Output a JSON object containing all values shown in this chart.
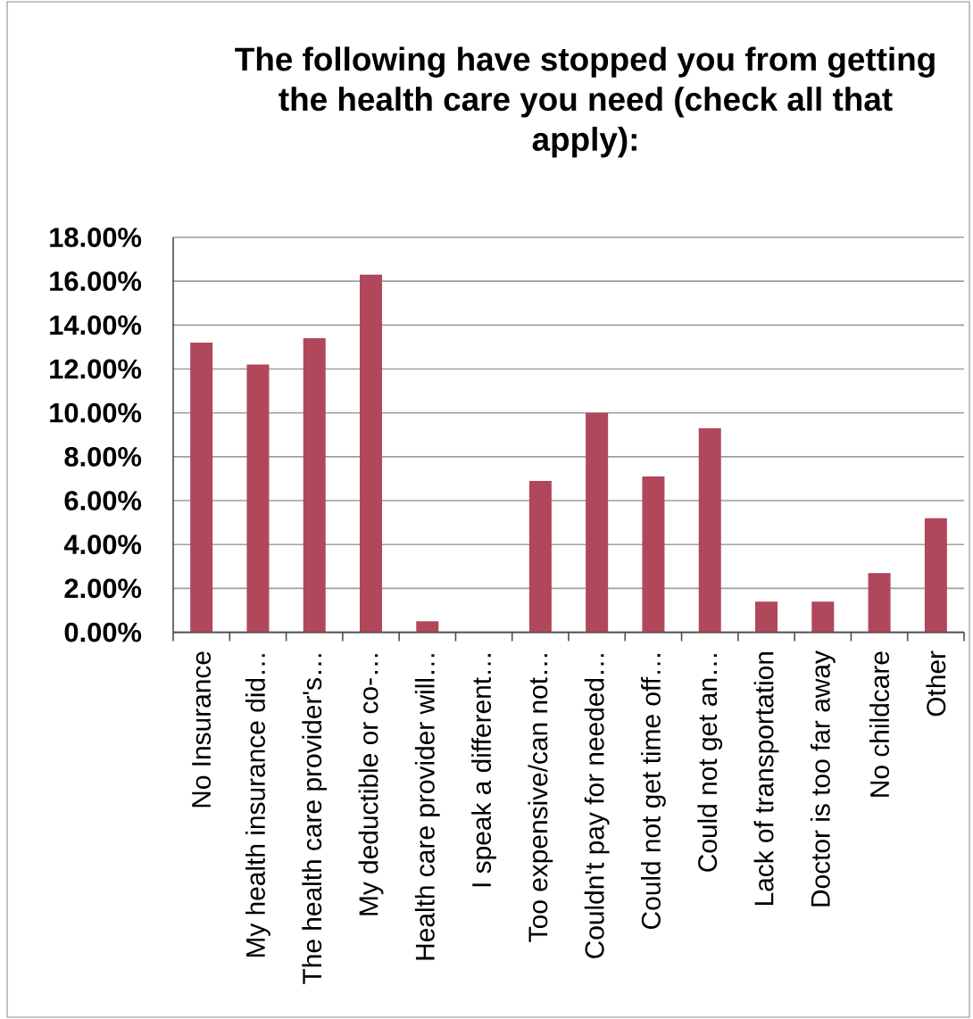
{
  "chart_data": {
    "type": "bar",
    "title": "The following have stopped you from getting the health care you need (check all that apply):",
    "categories": [
      "No Insurance",
      "My health insurance did…",
      "The health care provider's…",
      "My deductible or co-…",
      "Health care provider will…",
      "I speak a different…",
      "Too expensive/can not…",
      "Couldn't pay for needed…",
      "Could not get time off…",
      "Could not get an…",
      "Lack of transportation",
      "Doctor is too far away",
      "No childcare",
      "Other"
    ],
    "values": [
      13.2,
      12.2,
      13.4,
      16.3,
      0.5,
      0,
      6.9,
      10.0,
      7.1,
      9.3,
      1.4,
      1.4,
      2.7,
      5.2
    ],
    "color": "#b0475a",
    "ylim": [
      0,
      18
    ],
    "yticks": [
      {
        "value": 0,
        "label": "0.00%"
      },
      {
        "value": 2,
        "label": "2.00%"
      },
      {
        "value": 4,
        "label": "4.00%"
      },
      {
        "value": 6,
        "label": "6.00%"
      },
      {
        "value": 8,
        "label": "8.00%"
      },
      {
        "value": 10,
        "label": "10.00%"
      },
      {
        "value": 12,
        "label": "12.00%"
      },
      {
        "value": 14,
        "label": "14.00%"
      },
      {
        "value": 16,
        "label": "16.00%"
      },
      {
        "value": 18,
        "label": "18.00%"
      }
    ],
    "grid": "y"
  }
}
